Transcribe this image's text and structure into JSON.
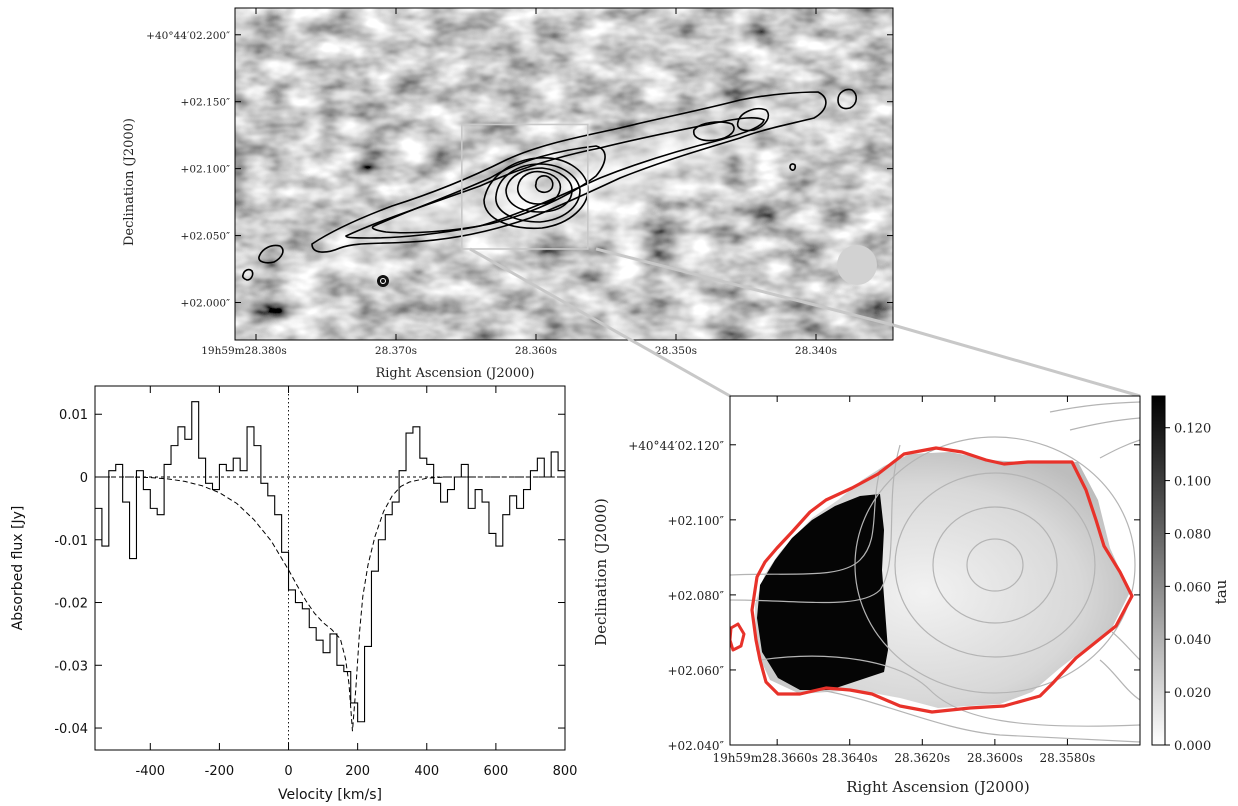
{
  "colors": {
    "zoom_box": "#c8c8c8",
    "absorption_outline": "#e8322a",
    "contours_bottom": "#b4b4b4"
  },
  "chart_data": [
    {
      "type": "heatmap",
      "xlabel": "Right Ascension (J2000)",
      "ylabel": "Declination (J2000)",
      "xticks": [
        "19h59m28.380s",
        "28.370s",
        "28.360s",
        "28.350s",
        "28.340s"
      ],
      "yticks": [
        "+40°44′02.200″",
        "+02.150″",
        "+02.100″",
        "+02.050″",
        "+02.000″"
      ],
      "x_ticks_seconds": [
        28.38,
        28.37,
        28.36,
        28.35,
        28.34
      ],
      "xlim_seconds": [
        28.3815,
        28.3345
      ],
      "y_ticks_arcsec": [
        2.2,
        2.15,
        2.1,
        2.05,
        2.0
      ],
      "ylim_arcsec": [
        1.972,
        2.22
      ],
      "contours": "black",
      "beam_marker": "bottom-right",
      "zoom_box_ra_seconds": [
        28.3653,
        28.3563
      ],
      "zoom_box_dec_arcsec": [
        2.04,
        2.133
      ]
    },
    {
      "type": "line",
      "xlabel": "Velocity [km/s]",
      "ylabel": "Absorbed flux [Jy]",
      "xticks": [
        "-400",
        "-200",
        "0",
        "200",
        "400",
        "600",
        "800"
      ],
      "yticks": [
        "0.01",
        "0",
        "-0.01",
        "-0.02",
        "-0.03",
        "-0.04"
      ],
      "xlim": [
        -560,
        800
      ],
      "ylim": [
        -0.0435,
        0.0145
      ],
      "x_tick_values": [
        -400,
        -200,
        0,
        200,
        400,
        600,
        800
      ],
      "y_tick_values": [
        0.01,
        0,
        -0.01,
        -0.02,
        -0.03,
        -0.04
      ],
      "series": [
        {
          "style": "histogram",
          "x": [
            -560,
            -540,
            -520,
            -500,
            -480,
            -460,
            -440,
            -420,
            -400,
            -380,
            -360,
            -340,
            -320,
            -300,
            -280,
            -260,
            -240,
            -220,
            -200,
            -180,
            -160,
            -140,
            -120,
            -100,
            -80,
            -60,
            -40,
            -20,
            0,
            20,
            40,
            60,
            80,
            100,
            120,
            140,
            160,
            180,
            200,
            220,
            240,
            260,
            280,
            300,
            320,
            340,
            360,
            380,
            400,
            420,
            440,
            460,
            480,
            500,
            520,
            540,
            560,
            580,
            600,
            620,
            640,
            660,
            680,
            700,
            720,
            740,
            760,
            780
          ],
          "y": [
            -0.005,
            -0.011,
            0.001,
            0.002,
            -0.004,
            -0.013,
            0.001,
            -0.002,
            -0.005,
            -0.006,
            0.002,
            0.005,
            0.008,
            0.006,
            0.012,
            0.003,
            -0.001,
            -0.002,
            0.002,
            0.001,
            0.003,
            0.001,
            0.008,
            0.005,
            -0.001,
            -0.003,
            -0.006,
            -0.012,
            -0.018,
            -0.02,
            -0.021,
            -0.024,
            -0.026,
            -0.028,
            -0.025,
            -0.03,
            -0.031,
            -0.036,
            -0.039,
            -0.027,
            -0.015,
            -0.01,
            -0.006,
            -0.004,
            0.001,
            0.007,
            0.008,
            0.003,
            0.002,
            -0.001,
            -0.004,
            -0.002,
            0.0,
            0.002,
            -0.005,
            -0.002,
            -0.004,
            -0.009,
            -0.011,
            -0.006,
            -0.003,
            -0.005,
            -0.002,
            0.001,
            0.003,
            0.0,
            0.004,
            0.001
          ]
        },
        {
          "style": "dashed",
          "x": [
            -560,
            -500,
            -450,
            -400,
            -350,
            -300,
            -250,
            -200,
            -150,
            -100,
            -50,
            0,
            25,
            50,
            75,
            100,
            125,
            150,
            165,
            175,
            185,
            195,
            205,
            215,
            230,
            250,
            275,
            300,
            325,
            350,
            400,
            450,
            500,
            600,
            700,
            800
          ],
          "y": [
            0,
            0,
            0,
            -0.0001,
            -0.0003,
            -0.0007,
            -0.0014,
            -0.0025,
            -0.0042,
            -0.0068,
            -0.0102,
            -0.0148,
            -0.0173,
            -0.0197,
            -0.0217,
            -0.0232,
            -0.0243,
            -0.0258,
            -0.029,
            -0.033,
            -0.0405,
            -0.0335,
            -0.025,
            -0.019,
            -0.014,
            -0.0095,
            -0.0055,
            -0.003,
            -0.0015,
            -0.0008,
            -0.0002,
            0,
            0,
            0,
            0,
            0
          ]
        }
      ],
      "reference_lines": {
        "zero_flux": "dashed",
        "zero_velocity": "dotted"
      }
    },
    {
      "type": "heatmap",
      "xlabel": "Right Ascension (J2000)",
      "ylabel": "Declination (J2000)",
      "xticks": [
        "19h59m28.3660s",
        "28.3640s",
        "28.3620s",
        "28.3600s",
        "28.3580s"
      ],
      "yticks": [
        "+40°44′02.120″",
        "+02.100″",
        "+02.080″",
        "+02.060″",
        "+02.040″"
      ],
      "x_ticks_seconds": [
        28.366,
        28.364,
        28.362,
        28.36,
        28.358
      ],
      "xlim_seconds": [
        28.3673,
        28.356
      ],
      "y_ticks_arcsec": [
        2.12,
        2.1,
        2.08,
        2.06,
        2.04
      ],
      "ylim_arcsec": [
        2.04,
        2.133
      ],
      "colorbar_label": "tau",
      "colorbar_ticks": [
        "0.120",
        "0.100",
        "0.080",
        "0.060",
        "0.040",
        "0.020",
        "0.000"
      ],
      "colorbar_tick_values": [
        0.12,
        0.1,
        0.08,
        0.06,
        0.04,
        0.02,
        0.0
      ],
      "colorbar_range": [
        0.0,
        0.132
      ],
      "colorscale": "white-to-black"
    }
  ]
}
